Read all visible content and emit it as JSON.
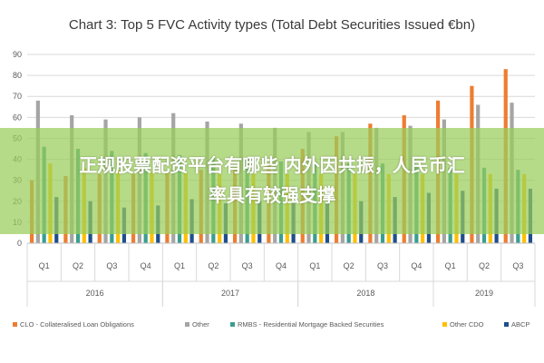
{
  "chart_data": {
    "type": "bar",
    "title": "Chart 3: Top 5 FVC Activity types (Total Debt Securities Issued €bn)",
    "xlabel": "",
    "ylabel": "",
    "ylim": [
      0,
      90
    ],
    "yticks": [
      0,
      10,
      20,
      30,
      40,
      50,
      60,
      70,
      80,
      90
    ],
    "grid": true,
    "legend_position": "bottom",
    "categories": [
      "Q1",
      "Q2",
      "Q3",
      "Q4",
      "Q1",
      "Q2",
      "Q3",
      "Q4",
      "Q1",
      "Q2",
      "Q3",
      "Q4",
      "Q1",
      "Q2",
      "Q3"
    ],
    "years": [
      {
        "label": "2016",
        "start": 0,
        "count": 4
      },
      {
        "label": "2017",
        "start": 4,
        "count": 4
      },
      {
        "label": "2018",
        "start": 8,
        "count": 4
      },
      {
        "label": "2019",
        "start": 12,
        "count": 3
      }
    ],
    "series": [
      {
        "name": "CLO - Collateralised Loan Obligations",
        "color": "#ed7d31",
        "values": [
          30,
          32,
          33,
          33,
          34,
          35,
          36,
          38,
          45,
          51,
          57,
          61,
          68,
          75,
          83
        ]
      },
      {
        "name": "Other",
        "color": "#a5a5a5",
        "values": [
          68,
          61,
          59,
          60,
          62,
          58,
          57,
          55,
          53,
          53,
          55,
          56,
          59,
          66,
          67
        ]
      },
      {
        "name": "RMBS - Residential Mortgage Backed Securities",
        "color": "#3a9e8f",
        "values": [
          46,
          45,
          44,
          43,
          42,
          41,
          40,
          39,
          39,
          38,
          38,
          37,
          36,
          36,
          35
        ]
      },
      {
        "name": "Other CDO",
        "color": "#ffc000",
        "values": [
          38,
          36,
          35,
          34,
          34,
          33,
          33,
          33,
          33,
          33,
          33,
          33,
          33,
          33,
          33
        ]
      },
      {
        "name": "ABCP",
        "color": "#1f4e8c",
        "values": [
          22,
          20,
          17,
          18,
          21,
          19,
          20,
          19,
          19,
          20,
          22,
          24,
          25,
          26,
          26
        ]
      }
    ]
  },
  "overlay": {
    "line1": "正规股票配资平台有哪些 内外因共振，人民币汇",
    "line2": "率具有较强支撑"
  }
}
